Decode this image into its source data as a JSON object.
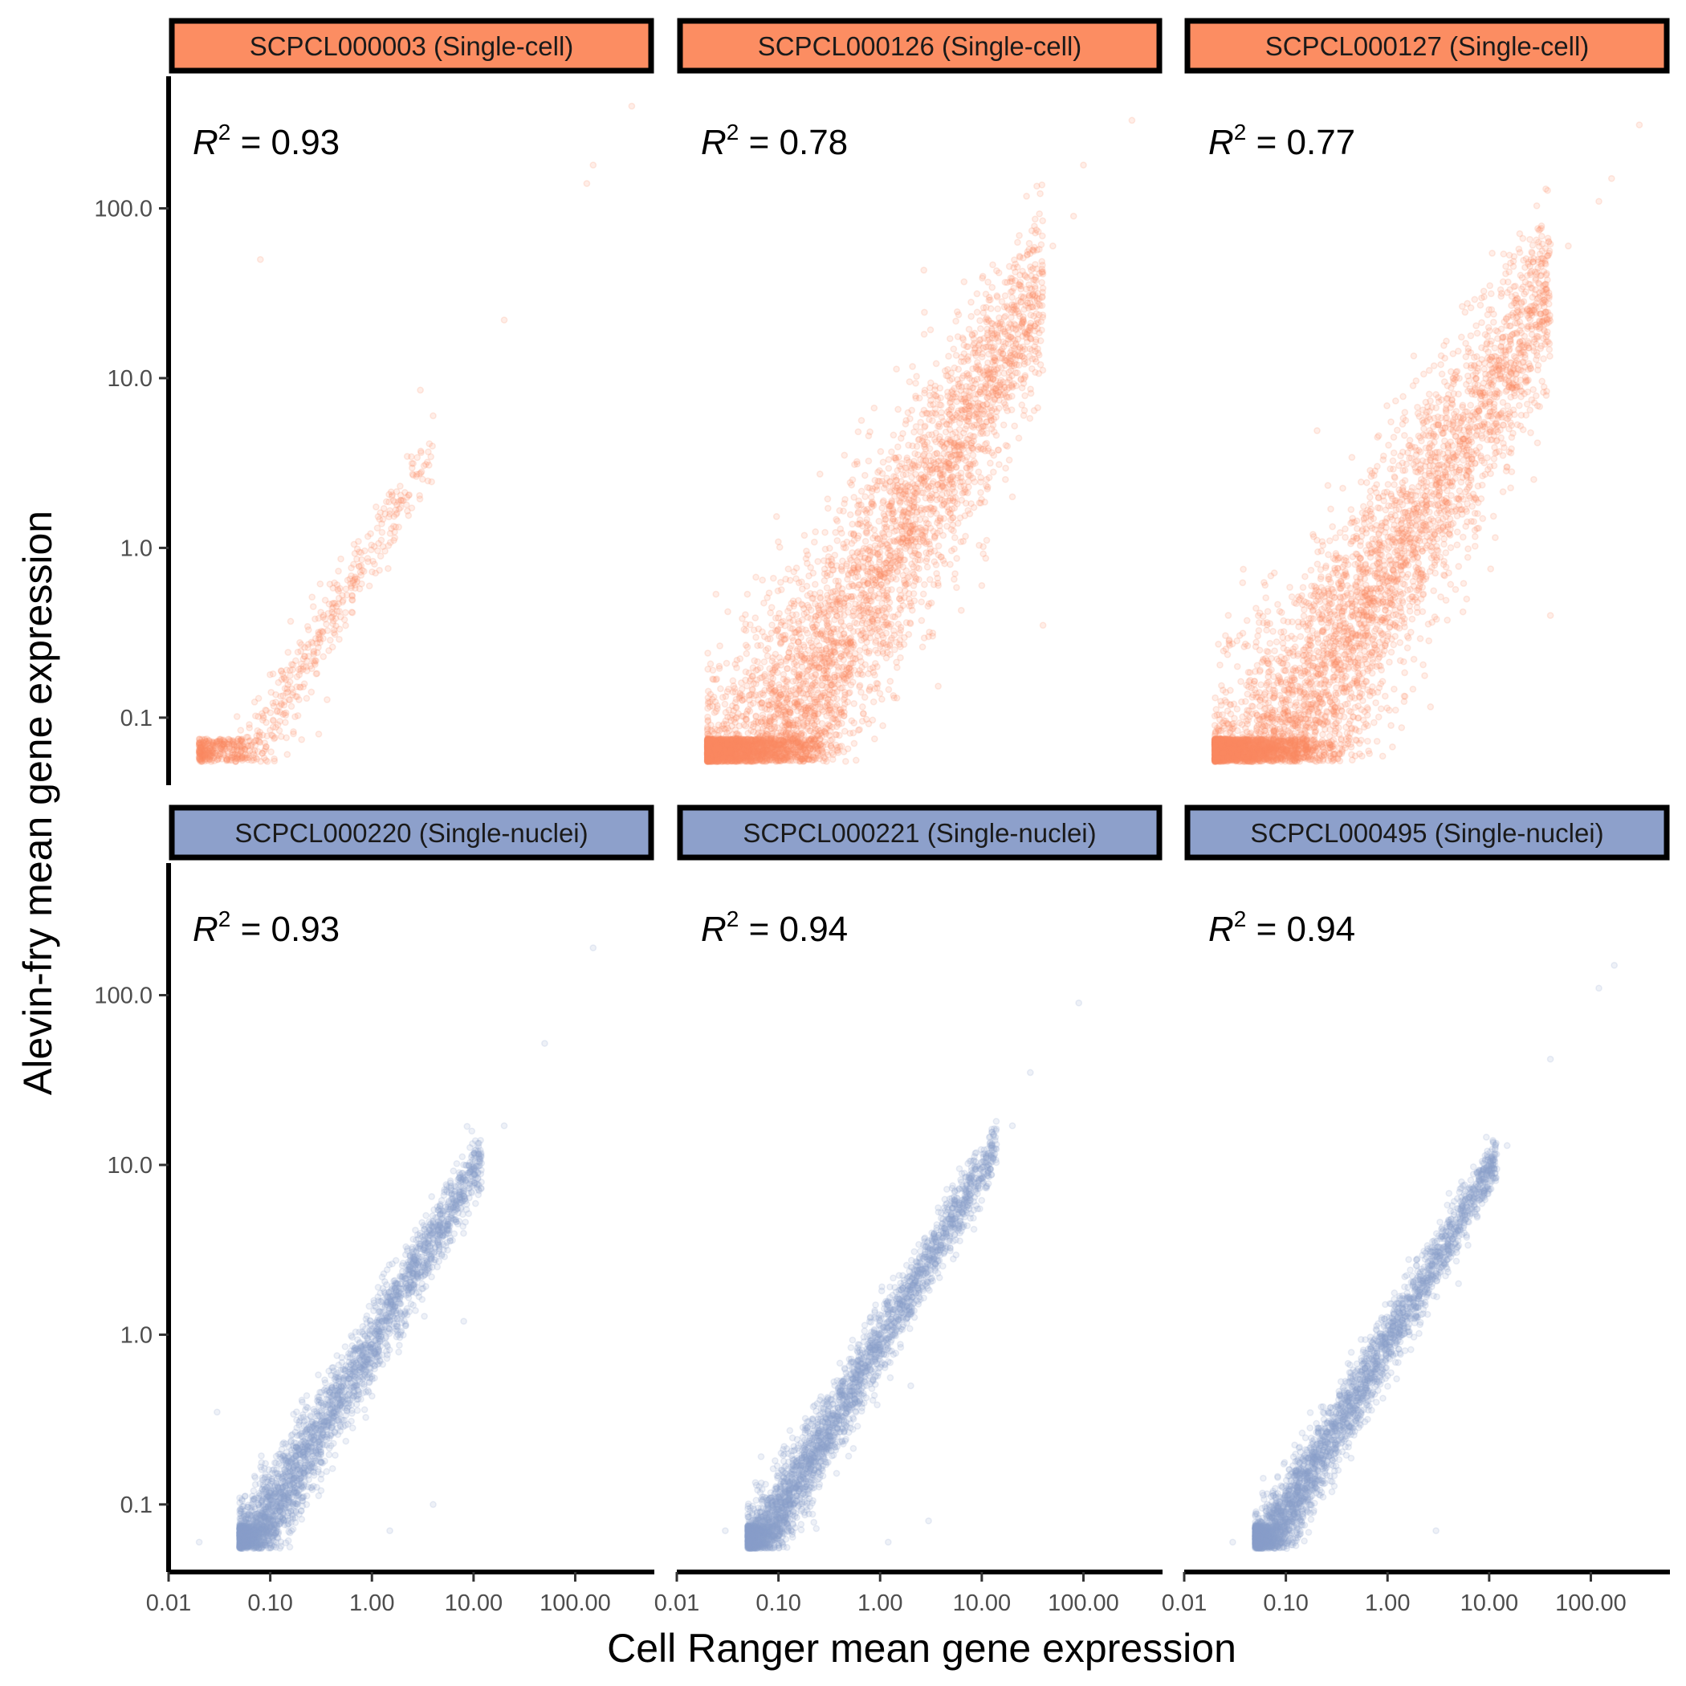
{
  "chart_data": {
    "type": "scatter",
    "layout": "facet-grid 2x3",
    "xlabel": "Cell Ranger mean gene expression",
    "ylabel": "Alevin-fry mean gene expression",
    "x_scale": "log10",
    "y_scale": "log10",
    "xlim": [
      0.01,
      600
    ],
    "ylim": [
      0.04,
      600
    ],
    "x_ticks": [
      0.01,
      0.1,
      1,
      10,
      100
    ],
    "x_tick_labels": [
      "0.01",
      "0.10",
      "1.00",
      "10.00",
      "100.00"
    ],
    "y_ticks": [
      0.1,
      1,
      10,
      100
    ],
    "y_tick_labels": [
      "0.1",
      "1.0",
      "10.0",
      "100.0"
    ],
    "grid": false,
    "legend": "none",
    "point_alpha": 0.15,
    "colors": {
      "single_cell": "#fc8d62",
      "single_nuclei": "#8da0cb"
    },
    "r2_prefix": "R",
    "r2_sup": "2",
    "panels": [
      {
        "label": "SCPCL000003 (Single-cell)",
        "group": "single_cell",
        "r2": "0.93",
        "x_range": [
          0.02,
          4
        ],
        "y_floor": 0.055,
        "spread": 0.08,
        "skew": 0.04,
        "n": 700,
        "outliers": [
          [
            0.08,
            50
          ],
          [
            20,
            22
          ],
          [
            130,
            140
          ],
          [
            150,
            180
          ],
          [
            360,
            400
          ],
          [
            4,
            6
          ],
          [
            3,
            8.5
          ],
          [
            0.3,
            0.08
          ],
          [
            0.035,
            0.07
          ]
        ]
      },
      {
        "label": "SCPCL000126 (Single-cell)",
        "group": "single_cell",
        "r2": "0.78",
        "x_range": [
          0.02,
          40
        ],
        "y_floor": 0.055,
        "spread": 0.25,
        "skew": 0.28,
        "n": 5200,
        "outliers": [
          [
            300,
            330
          ],
          [
            100,
            180
          ],
          [
            80,
            90
          ],
          [
            50,
            60
          ],
          [
            0.02,
            0.08
          ],
          [
            20,
            2
          ],
          [
            10,
            0.6
          ],
          [
            40,
            0.35
          ],
          [
            3,
            0.3
          ]
        ]
      },
      {
        "label": "SCPCL000127 (Single-cell)",
        "group": "single_cell",
        "r2": "0.77",
        "x_range": [
          0.02,
          40
        ],
        "y_floor": 0.055,
        "spread": 0.25,
        "skew": 0.3,
        "n": 5200,
        "outliers": [
          [
            300,
            310
          ],
          [
            160,
            150
          ],
          [
            120,
            110
          ],
          [
            60,
            60
          ],
          [
            30,
            50
          ],
          [
            0.02,
            0.09
          ],
          [
            15,
            3
          ],
          [
            40,
            0.4
          ],
          [
            6,
            0.5
          ]
        ]
      },
      {
        "label": "SCPCL000220 (Single-nuclei)",
        "group": "single_nuclei",
        "r2": "0.93",
        "x_range": [
          0.05,
          12
        ],
        "y_floor": 0.055,
        "spread": 0.08,
        "skew": 0.1,
        "n": 3200,
        "outliers": [
          [
            150,
            190
          ],
          [
            50,
            52
          ],
          [
            20,
            17
          ],
          [
            8,
            1.2
          ],
          [
            4,
            0.1
          ],
          [
            0.02,
            0.06
          ],
          [
            0.03,
            0.35
          ],
          [
            1.5,
            0.07
          ]
        ]
      },
      {
        "label": "SCPCL000221 (Single-nuclei)",
        "group": "single_nuclei",
        "r2": "0.94",
        "x_range": [
          0.05,
          14
        ],
        "y_floor": 0.055,
        "spread": 0.07,
        "skew": 0.08,
        "n": 3200,
        "outliers": [
          [
            90,
            90
          ],
          [
            30,
            35
          ],
          [
            20,
            17
          ],
          [
            3,
            0.08
          ],
          [
            0.03,
            0.07
          ],
          [
            2,
            0.5
          ],
          [
            1.2,
            0.06
          ]
        ]
      },
      {
        "label": "SCPCL000495 (Single-nuclei)",
        "group": "single_nuclei",
        "r2": "0.94",
        "x_range": [
          0.05,
          12
        ],
        "y_floor": 0.055,
        "spread": 0.07,
        "skew": 0.09,
        "n": 3200,
        "outliers": [
          [
            170,
            150
          ],
          [
            120,
            110
          ],
          [
            40,
            42
          ],
          [
            15,
            13
          ],
          [
            3,
            0.07
          ],
          [
            0.03,
            0.06
          ],
          [
            0.2,
            0.3
          ],
          [
            5,
            2
          ]
        ]
      }
    ]
  }
}
